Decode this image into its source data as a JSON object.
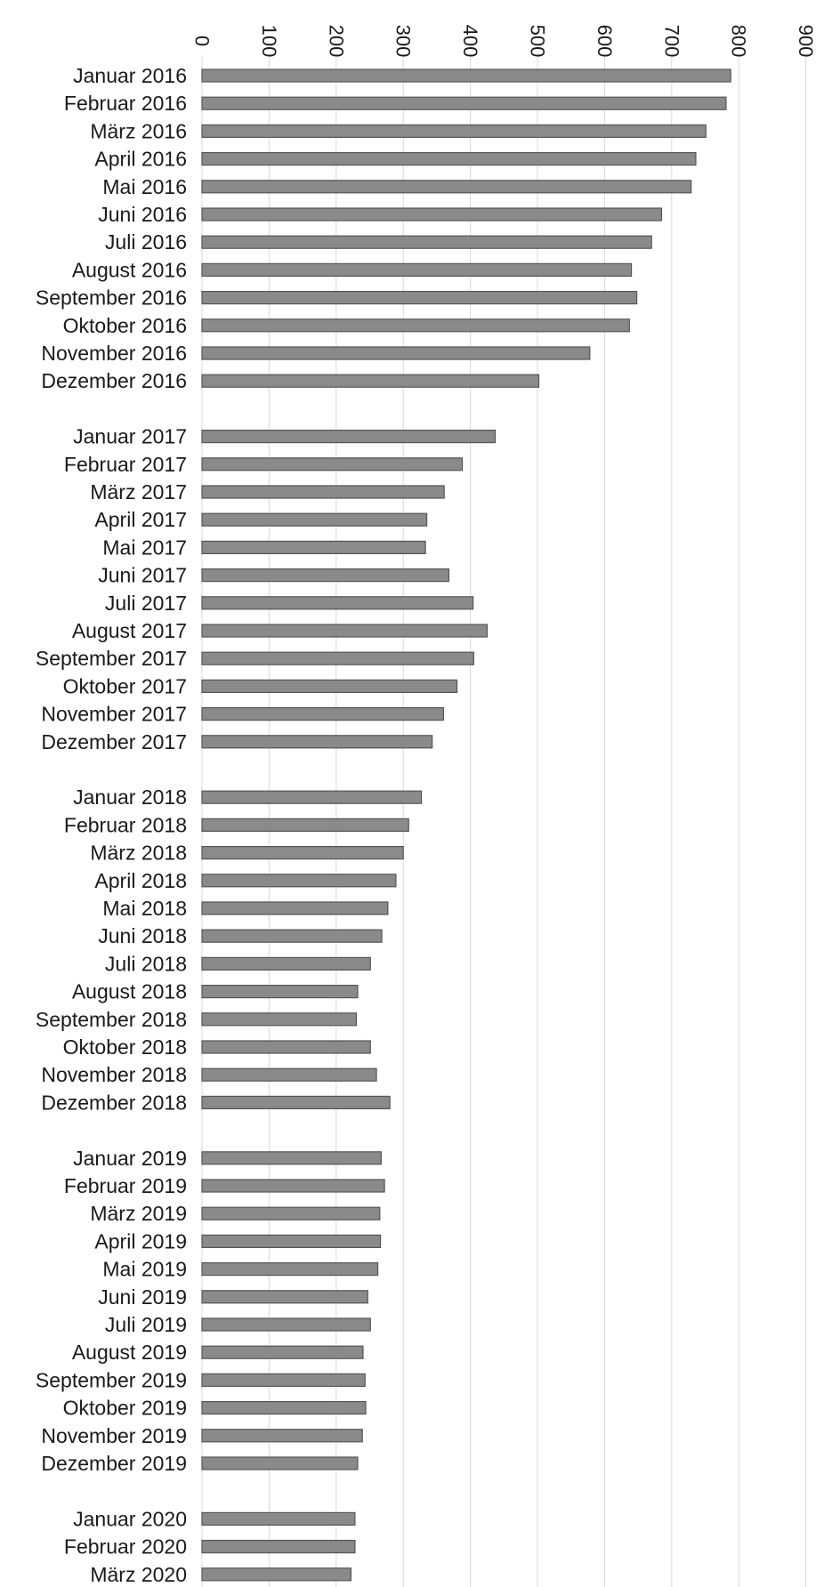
{
  "chart_data": {
    "type": "bar",
    "orientation": "horizontal",
    "title": "",
    "xlabel": "",
    "ylabel": "",
    "xlim": [
      0,
      900
    ],
    "ticks": [
      "0",
      "100",
      "200",
      "300",
      "400",
      "500",
      "600",
      "700",
      "800",
      "900"
    ],
    "grid": true,
    "bar_color": "#8a8a8a",
    "bar_edge_color": "#555555",
    "groups": [
      {
        "categories": [
          "Januar 2016",
          "Februar 2016",
          "März 2016",
          "April 2016",
          "Mai 2016",
          "Juni 2016",
          "Juli 2016",
          "August 2016",
          "September 2016",
          "Oktober 2016",
          "November 2016",
          "Dezember 2016"
        ],
        "values": [
          788,
          781,
          751,
          736,
          729,
          685,
          670,
          640,
          648,
          637,
          578,
          502
        ]
      },
      {
        "categories": [
          "Januar 2017",
          "Februar 2017",
          "März 2017",
          "April 2017",
          "Mai 2017",
          "Juni 2017",
          "Juli 2017",
          "August 2017",
          "September 2017",
          "Oktober 2017",
          "November 2017",
          "Dezember 2017"
        ],
        "values": [
          437,
          388,
          361,
          335,
          333,
          368,
          404,
          425,
          405,
          380,
          360,
          343
        ]
      },
      {
        "categories": [
          "Januar 2018",
          "Februar 2018",
          "März 2018",
          "April 2018",
          "Mai 2018",
          "Juni 2018",
          "Juli 2018",
          "August 2018",
          "September 2018",
          "Oktober 2018",
          "November 2018",
          "Dezember 2018"
        ],
        "values": [
          327,
          308,
          300,
          289,
          277,
          268,
          251,
          232,
          230,
          251,
          260,
          280
        ]
      },
      {
        "categories": [
          "Januar 2019",
          "Februar 2019",
          "März 2019",
          "April 2019",
          "Mai 2019",
          "Juni 2019",
          "Juli 2019",
          "August 2019",
          "September 2019",
          "Oktober 2019",
          "November 2019",
          "Dezember 2019"
        ],
        "values": [
          267,
          272,
          265,
          266,
          262,
          247,
          251,
          240,
          243,
          244,
          239,
          232
        ]
      },
      {
        "categories": [
          "Januar 2020",
          "Februar 2020",
          "März 2020"
        ],
        "values": [
          228,
          228,
          222
        ]
      }
    ]
  }
}
